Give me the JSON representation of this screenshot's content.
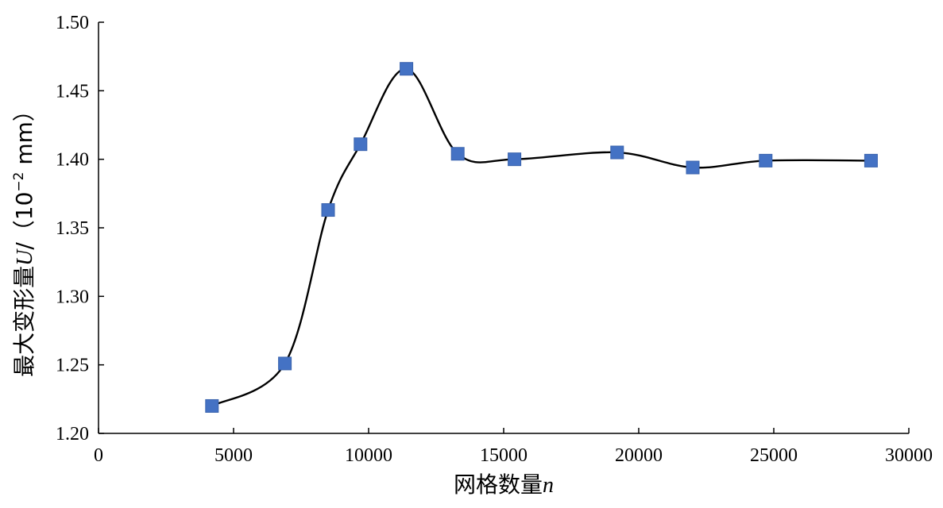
{
  "chart_data": {
    "type": "line",
    "title": "",
    "xlabel": "网格数量",
    "xlabel_var": "n",
    "ylabel": "最大变形量",
    "ylabel_var": "U",
    "ylabel_unit": "/（10",
    "ylabel_unit_exp": "−2",
    "ylabel_unit_tail": " mm）",
    "xlim": [
      0,
      30000
    ],
    "ylim": [
      1.2,
      1.5
    ],
    "x_ticks": [
      0,
      5000,
      10000,
      15000,
      20000,
      25000,
      30000
    ],
    "y_ticks": [
      "1.20",
      "1.25",
      "1.30",
      "1.35",
      "1.40",
      "1.45",
      "1.50"
    ],
    "grid": false,
    "legend": "none",
    "marker": "square",
    "marker_color": "#4472c4",
    "line_color": "#000000",
    "series": [
      {
        "x": [
          4200,
          6900,
          8500,
          9700,
          11400,
          13300,
          15400,
          19200,
          22000,
          24700,
          28600
        ],
        "y": [
          1.22,
          1.251,
          1.363,
          1.411,
          1.466,
          1.404,
          1.4,
          1.405,
          1.394,
          1.399,
          1.399
        ]
      }
    ]
  }
}
